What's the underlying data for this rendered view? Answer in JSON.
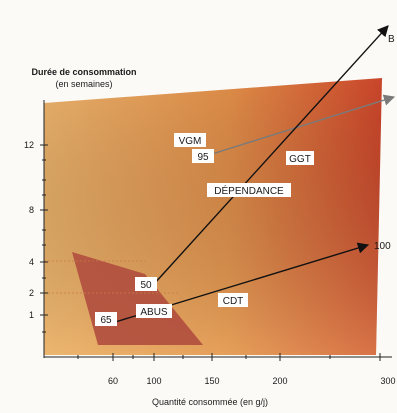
{
  "y_axis": {
    "title_line1": "Durée de consommation",
    "title_line2": "(en semaines)",
    "ticks": [
      "12",
      "8",
      "4",
      "2",
      "1"
    ]
  },
  "x_axis": {
    "title": "Quantité consommée (en g/j)",
    "ticks": [
      "60",
      "100",
      "150",
      "200",
      "300"
    ]
  },
  "zones": {
    "abus": "ABUS",
    "dependance": "DÉPENDANCE"
  },
  "markers": {
    "vgm": "VGM",
    "ggt": "GGT",
    "cdt": "CDT"
  },
  "values": {
    "v50": "50",
    "v95": "95",
    "v65": "65",
    "v100": "100",
    "vB": "B"
  },
  "colors": {
    "zone_light": "#e3a25a",
    "zone_dark": "#c8462a",
    "abus": "#b14f3f",
    "arrow_black": "#111111",
    "arrow_gray": "#7a7a7a"
  }
}
